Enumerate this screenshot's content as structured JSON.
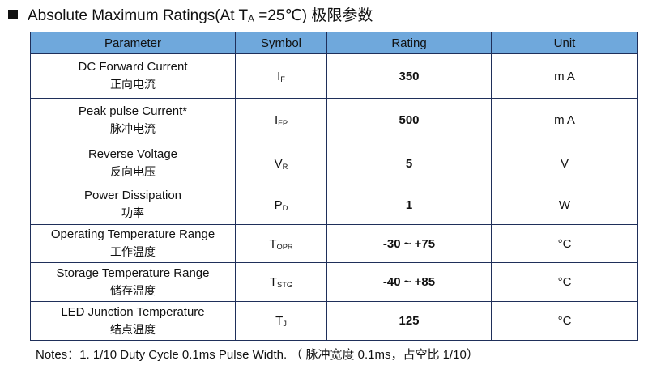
{
  "header": {
    "title_prefix": "Absolute Maximum Ratings(At T",
    "title_sub": "A",
    "title_suffix": " =25℃)  极限参数"
  },
  "table": {
    "columns": [
      "Parameter",
      "Symbol",
      "Rating",
      "Unit"
    ],
    "rows": [
      {
        "parameter": "DC Forward Current",
        "parameter_cn": "正向电流",
        "symbol": "I",
        "symbol_sub": "F",
        "rating": "350",
        "unit": "m A"
      },
      {
        "parameter": "Peak pulse Current*",
        "parameter_cn": "脉冲电流",
        "symbol": "I",
        "symbol_sub": "FP",
        "rating": "500",
        "unit": "m A"
      },
      {
        "parameter": "Reverse Voltage",
        "parameter_cn": "反向电压",
        "symbol": "V",
        "symbol_sub": "R",
        "rating": "5",
        "unit": "V"
      },
      {
        "parameter": "Power Dissipation",
        "parameter_cn": "功率",
        "symbol": "P",
        "symbol_sub": "D",
        "rating": "1",
        "unit": "W"
      },
      {
        "parameter": "Operating Temperature Range",
        "parameter_cn": "工作温度",
        "symbol": "T",
        "symbol_sub": "OPR",
        "rating": "-30 ~ +75",
        "unit": "°C"
      },
      {
        "parameter": "Storage Temperature Range",
        "parameter_cn": "储存温度",
        "symbol": "T",
        "symbol_sub": "STG",
        "rating": "-40 ~ +85",
        "unit": "°C"
      },
      {
        "parameter": "LED Junction Temperature",
        "parameter_cn": "结点温度",
        "symbol": "T",
        "symbol_sub": "J",
        "rating": "125",
        "unit": "°C"
      }
    ]
  },
  "notes": {
    "label": "Notes：",
    "text": "1. 1/10 Duty Cycle 0.1ms Pulse Width. （ 脉冲宽度 0.1ms，占空比 1/10）"
  }
}
